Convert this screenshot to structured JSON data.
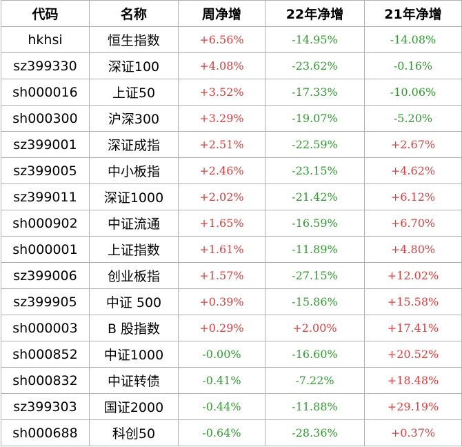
{
  "table": {
    "header": [
      "代码",
      "名称",
      "周净增",
      "22年净增",
      "21年净增"
    ],
    "rows": [
      [
        "hkhsi",
        "恒生指数",
        "+6.56%",
        "-14.95%",
        "-14.08%"
      ],
      [
        "sz399330",
        "深证100",
        "+4.08%",
        "-23.62%",
        "-0.16%"
      ],
      [
        "sh000016",
        "上证50",
        "+3.52%",
        "-17.33%",
        "-10.06%"
      ],
      [
        "sh000300",
        "沪深300",
        "+3.29%",
        "-19.07%",
        "-5.20%"
      ],
      [
        "sz399001",
        "深证成指",
        "+2.51%",
        "-22.59%",
        "+2.67%"
      ],
      [
        "sz399005",
        "中小板指",
        "+2.46%",
        "-23.15%",
        "+4.62%"
      ],
      [
        "sz399011",
        "深证1000",
        "+2.02%",
        "-21.42%",
        "+6.12%"
      ],
      [
        "sh000902",
        "中证流通",
        "+1.65%",
        "-16.59%",
        "+6.70%"
      ],
      [
        "sh000001",
        "上证指数",
        "+1.61%",
        "-11.89%",
        "+4.80%"
      ],
      [
        "sz399006",
        "创业板指",
        "+1.57%",
        "-27.15%",
        "+12.02%"
      ],
      [
        "sz399905",
        "中证 500",
        "+0.39%",
        "-15.86%",
        "+15.58%"
      ],
      [
        "sh000003",
        "B 股指数",
        "+0.29%",
        "+2.00%",
        "+17.41%"
      ],
      [
        "sh000852",
        "中证1000",
        "-0.00%",
        "-16.60%",
        "+20.52%"
      ],
      [
        "sh000832",
        "中证转债",
        "-0.41%",
        "-7.22%",
        "+18.48%"
      ],
      [
        "sz399303",
        "国证2000",
        "-0.44%",
        "-11.88%",
        "+29.19%"
      ],
      [
        "sh000688",
        "科创50",
        "-0.64%",
        "-28.36%",
        "+0.37%"
      ]
    ]
  }
}
